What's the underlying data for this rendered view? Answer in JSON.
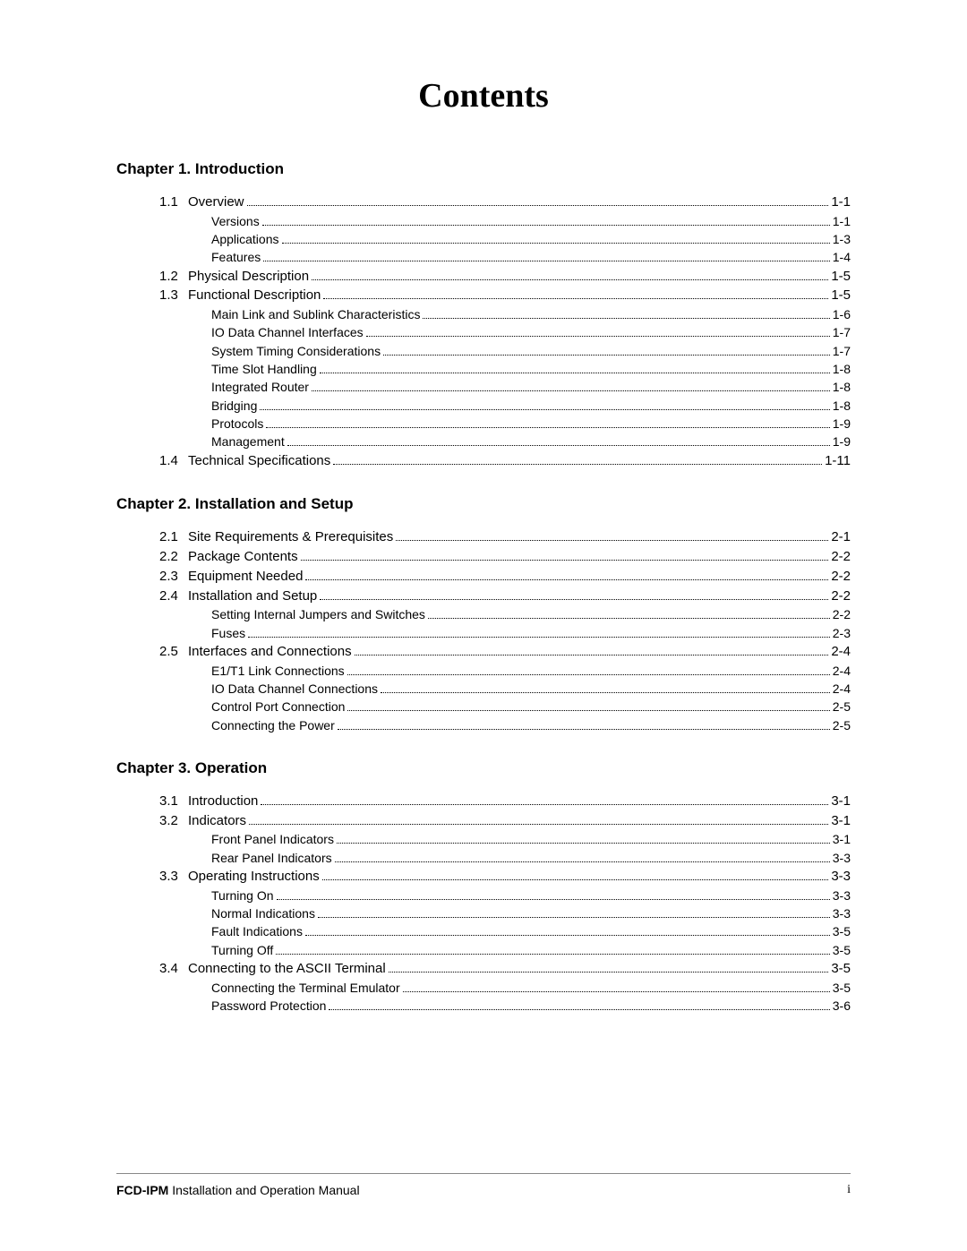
{
  "title": "Contents",
  "chapters": [
    {
      "heading": "Chapter 1. Introduction",
      "rows": [
        {
          "type": "section",
          "num": "1.1",
          "label": "Overview",
          "page": "1-1"
        },
        {
          "type": "sub",
          "label": "Versions",
          "page": "1-1"
        },
        {
          "type": "sub",
          "label": "Applications",
          "page": "1-3"
        },
        {
          "type": "sub",
          "label": "Features",
          "page": "1-4"
        },
        {
          "type": "section",
          "num": "1.2",
          "label": "Physical Description",
          "page": "1-5"
        },
        {
          "type": "section",
          "num": "1.3",
          "label": "Functional Description",
          "page": "1-5"
        },
        {
          "type": "sub",
          "label": "Main Link and Sublink Characteristics",
          "page": "1-6"
        },
        {
          "type": "sub",
          "label": "IO Data Channel Interfaces",
          "page": "1-7"
        },
        {
          "type": "sub",
          "label": "System Timing Considerations",
          "page": "1-7"
        },
        {
          "type": "sub",
          "label": "Time Slot Handling",
          "page": "1-8"
        },
        {
          "type": "sub",
          "label": "Integrated Router",
          "page": "1-8"
        },
        {
          "type": "sub",
          "label": "Bridging",
          "page": "1-8"
        },
        {
          "type": "sub",
          "label": "Protocols",
          "page": "1-9"
        },
        {
          "type": "sub",
          "label": "Management",
          "page": "1-9"
        },
        {
          "type": "section",
          "num": "1.4",
          "label": "Technical Specifications",
          "page": "1-11"
        }
      ]
    },
    {
      "heading": "Chapter 2. Installation and Setup",
      "rows": [
        {
          "type": "section",
          "num": "2.1",
          "label": "Site Requirements & Prerequisites",
          "page": "2-1"
        },
        {
          "type": "section",
          "num": "2.2",
          "label": "Package Contents",
          "page": "2-2"
        },
        {
          "type": "section",
          "num": "2.3",
          "label": "Equipment Needed",
          "page": "2-2"
        },
        {
          "type": "section",
          "num": "2.4",
          "label": "Installation and Setup",
          "page": "2-2"
        },
        {
          "type": "sub",
          "label": "Setting Internal Jumpers and Switches",
          "page": "2-2"
        },
        {
          "type": "sub",
          "label": "Fuses",
          "page": "2-3"
        },
        {
          "type": "section",
          "num": "2.5",
          "label": "Interfaces and Connections",
          "page": "2-4"
        },
        {
          "type": "sub",
          "label": "E1/T1 Link Connections",
          "page": "2-4"
        },
        {
          "type": "sub",
          "label": "IO Data Channel Connections",
          "page": "2-4"
        },
        {
          "type": "sub",
          "label": "Control Port Connection",
          "page": "2-5"
        },
        {
          "type": "sub",
          "label": "Connecting the Power",
          "page": "2-5"
        }
      ]
    },
    {
      "heading": "Chapter 3. Operation",
      "rows": [
        {
          "type": "section",
          "num": "3.1",
          "label": "Introduction",
          "page": "3-1"
        },
        {
          "type": "section",
          "num": "3.2",
          "label": "Indicators",
          "page": "3-1"
        },
        {
          "type": "sub",
          "label": "Front Panel Indicators",
          "page": "3-1"
        },
        {
          "type": "sub",
          "label": "Rear Panel Indicators",
          "page": "3-3"
        },
        {
          "type": "section",
          "num": "3.3",
          "label": "Operating Instructions",
          "page": "3-3"
        },
        {
          "type": "sub",
          "label": "Turning On",
          "page": "3-3"
        },
        {
          "type": "sub",
          "label": "Normal Indications",
          "page": "3-3"
        },
        {
          "type": "sub",
          "label": "Fault Indications",
          "page": "3-5"
        },
        {
          "type": "sub",
          "label": "Turning Off",
          "page": "3-5"
        },
        {
          "type": "section",
          "num": "3.4",
          "label": "Connecting to the ASCII Terminal",
          "page": "3-5"
        },
        {
          "type": "sub",
          "label": "Connecting the Terminal Emulator",
          "page": "3-5"
        },
        {
          "type": "sub",
          "label": "Password Protection",
          "page": "3-6"
        }
      ]
    }
  ],
  "footer": {
    "product": "FCD-IPM",
    "suffix": " Installation and Operation Manual",
    "page_number": "i"
  }
}
